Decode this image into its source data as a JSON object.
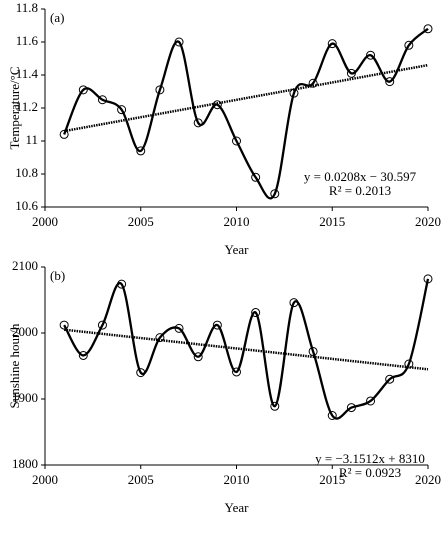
{
  "chart_data": [
    {
      "type": "line",
      "panel_label": "(a)",
      "x_label": "Year",
      "y_label": "Temperature/°C",
      "x": [
        2001,
        2002,
        2003,
        2004,
        2005,
        2006,
        2007,
        2008,
        2009,
        2010,
        2011,
        2012,
        2013,
        2014,
        2015,
        2016,
        2017,
        2018,
        2019,
        2020
      ],
      "values": [
        11.04,
        11.31,
        11.25,
        11.19,
        10.94,
        11.31,
        11.6,
        11.11,
        11.22,
        11.0,
        10.78,
        10.68,
        11.29,
        11.35,
        11.59,
        11.41,
        11.52,
        11.36,
        11.58,
        11.68
      ],
      "color": "#000000",
      "smooth": true,
      "markers": true,
      "xlim": [
        2000,
        2020
      ],
      "xticks": [
        2000,
        2005,
        2010,
        2015,
        2020
      ],
      "ylim": [
        10.6,
        11.8
      ],
      "yticks": [
        10.6,
        10.8,
        11,
        11.2,
        11.4,
        11.6,
        11.8
      ],
      "trendline": {
        "x": [
          2001,
          2020
        ],
        "values": [
          11.06,
          11.46
        ]
      },
      "annotations": [
        "y = 0.0208x − 30.597",
        "R² = 0.2013"
      ]
    },
    {
      "type": "line",
      "panel_label": "(b)",
      "x_label": "Year",
      "y_label": "Sunshine hour/h",
      "x": [
        2001,
        2002,
        2003,
        2004,
        2005,
        2006,
        2007,
        2008,
        2009,
        2010,
        2011,
        2012,
        2013,
        2014,
        2015,
        2016,
        2017,
        2018,
        2019,
        2020
      ],
      "values": [
        2012,
        1966,
        2012,
        2074,
        1940,
        1993,
        2007,
        1964,
        2012,
        1941,
        2031,
        1889,
        2046,
        1972,
        1875,
        1887,
        1897,
        1930,
        1953,
        2082
      ],
      "color": "#000000",
      "smooth": true,
      "markers": true,
      "xlim": [
        2000,
        2020
      ],
      "xticks": [
        2000,
        2005,
        2010,
        2015,
        2020
      ],
      "ylim": [
        1800,
        2100
      ],
      "yticks": [
        1800,
        1900,
        2000,
        2100
      ],
      "trendline": {
        "x": [
          2001,
          2020
        ],
        "values": [
          2005,
          1945
        ]
      },
      "annotations": [
        "y = −3.1512x + 8310",
        "R² = 0.0923"
      ]
    }
  ]
}
